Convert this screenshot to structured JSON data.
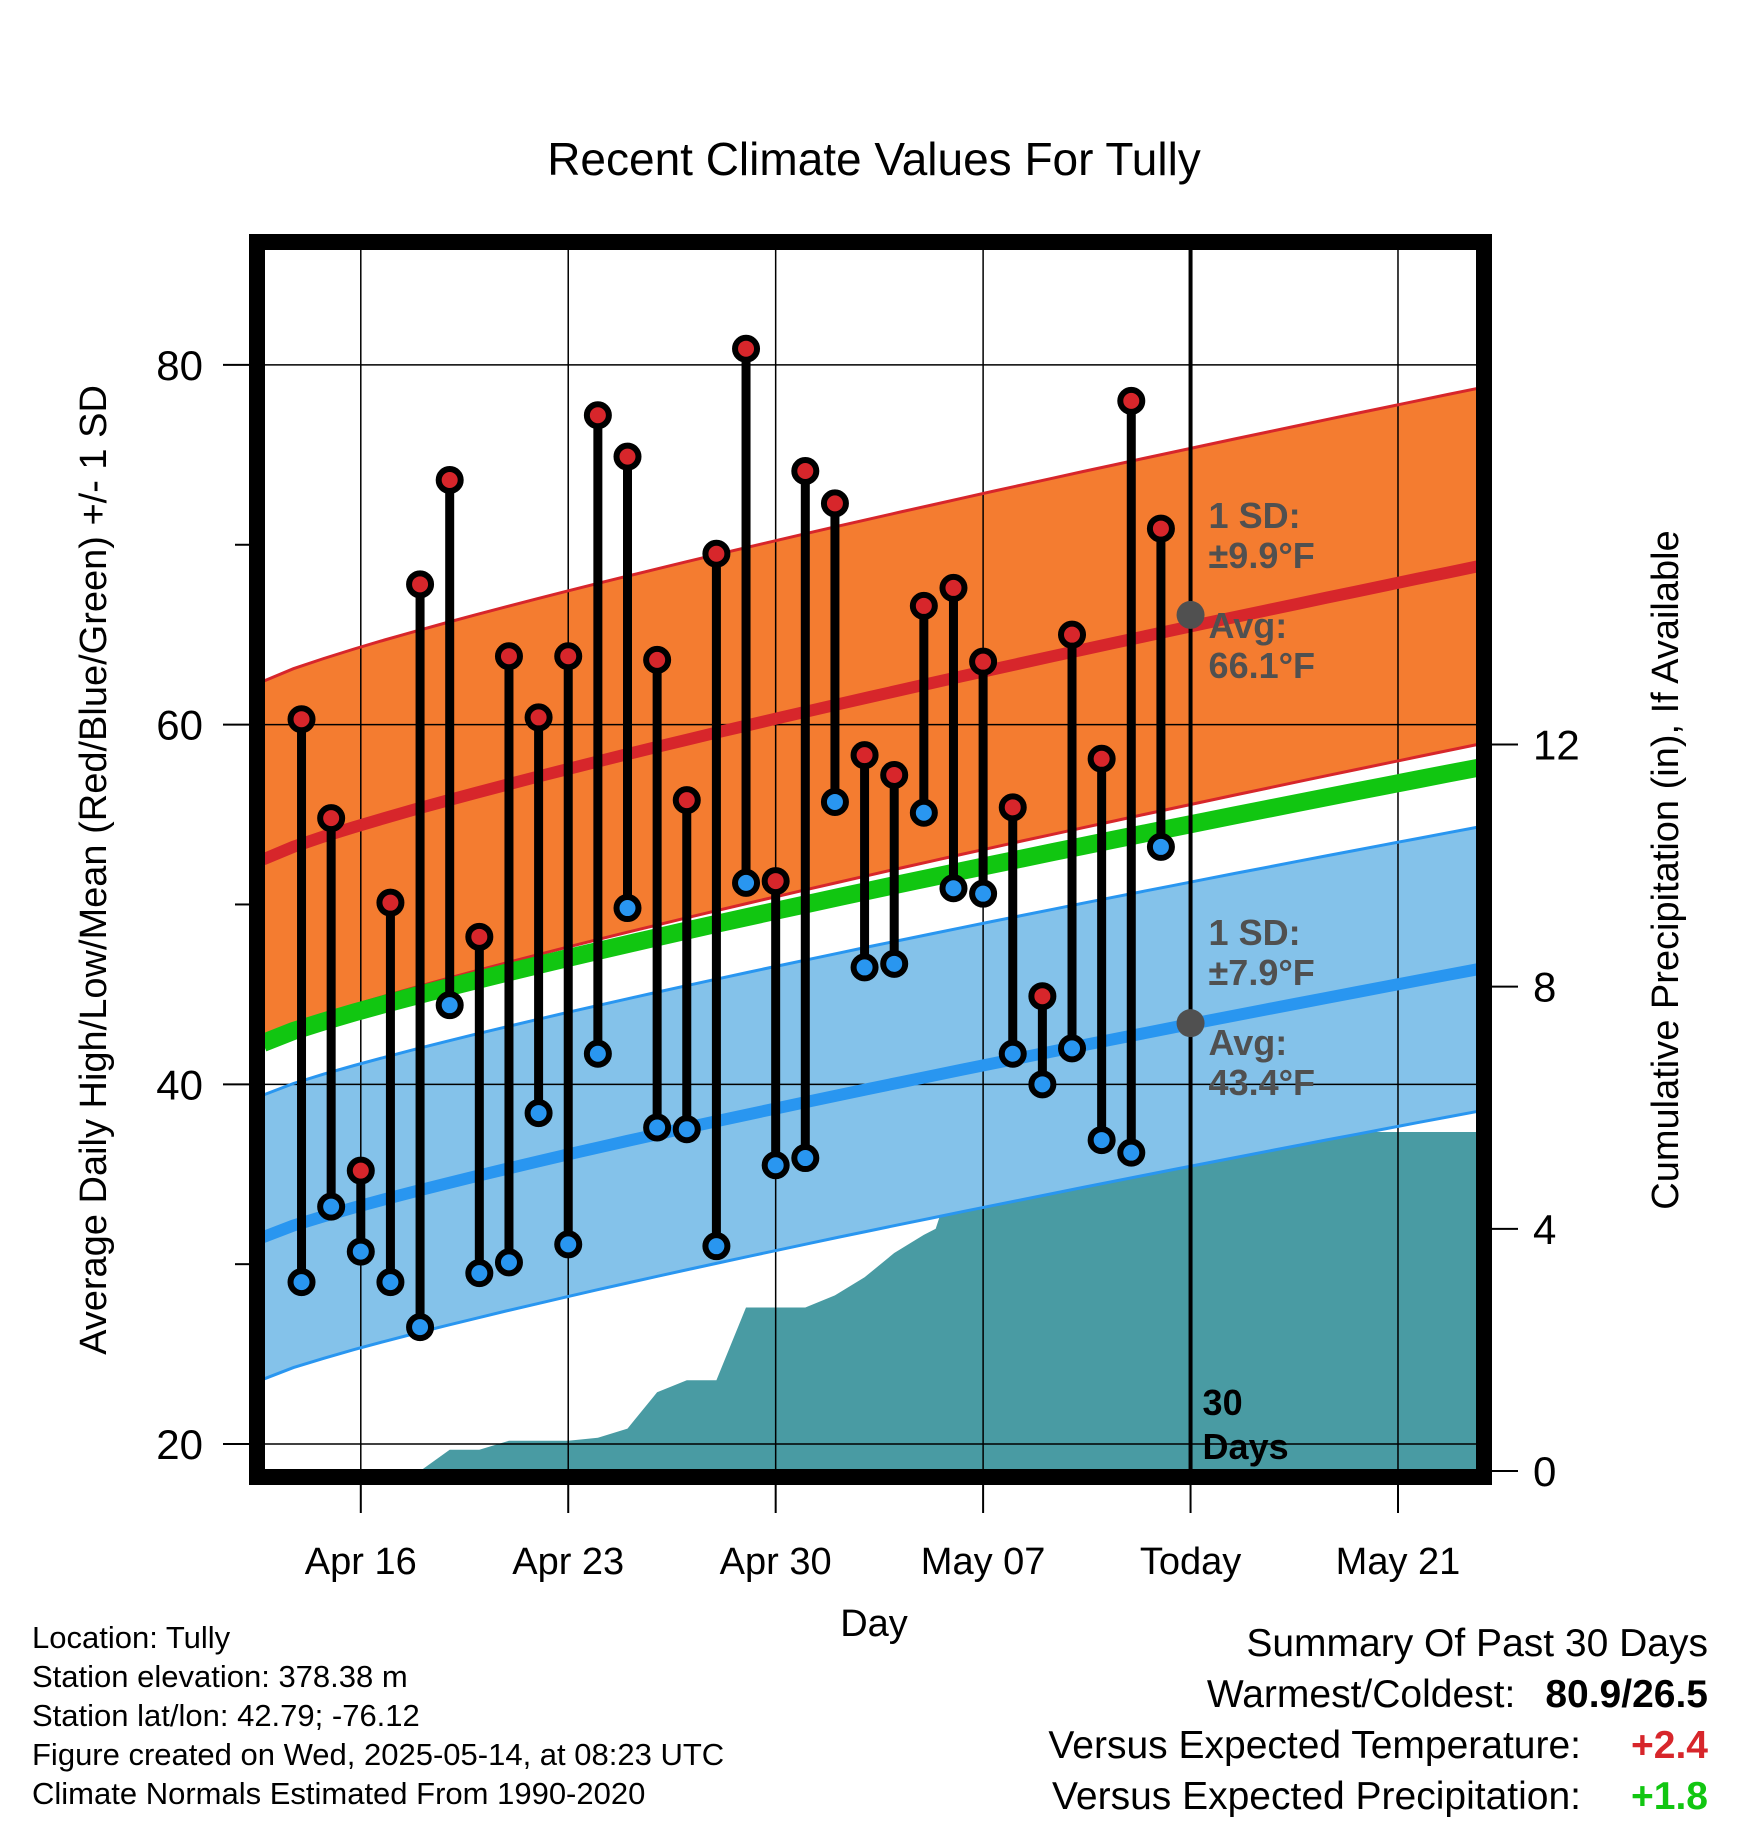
{
  "chart_data": {
    "type": "line",
    "title": "Recent Climate Values For Tully",
    "xlabel": "Day",
    "ylabel": "Average Daily High/Low/Mean (Red/Blue/Green) +/- 1 SD",
    "y2label": "Cumulative Precipitation (in), If Available",
    "ylim": [
      18.5,
      86.5
    ],
    "y2lim": [
      0,
      20.2
    ],
    "yticks": [
      "20",
      "40",
      "60",
      "80"
    ],
    "y2ticks": [
      "0",
      "4",
      "8",
      "12"
    ],
    "xtick_labels": [
      "Apr 16",
      "Apr 23",
      "Apr 30",
      "May 07",
      "Today",
      "May 21"
    ],
    "xtick_days": [
      16,
      23,
      30,
      37,
      44,
      51
    ],
    "xlim": [
      12.7,
      53.7
    ],
    "grid": true,
    "today_day": 44,
    "days": [
      14,
      15,
      16,
      17,
      18,
      19,
      20,
      21,
      22,
      23,
      24,
      25,
      26,
      27,
      28,
      29,
      30,
      31,
      32,
      33,
      34,
      35,
      36,
      37,
      38,
      39,
      40,
      41,
      42,
      43
    ],
    "series": [
      {
        "name": "High",
        "color": "#d7262b",
        "values": [
          60.3,
          54.8,
          35.2,
          50.1,
          67.8,
          73.6,
          48.2,
          63.8,
          60.4,
          63.8,
          77.2,
          74.9,
          63.6,
          55.8,
          69.5,
          80.9,
          51.3,
          74.1,
          72.3,
          58.3,
          57.2,
          66.6,
          67.6,
          63.5,
          55.4,
          44.9,
          65.0,
          58.1,
          78.0,
          70.9
        ]
      },
      {
        "name": "Low",
        "color": "#2996f0",
        "values": [
          29.0,
          33.2,
          30.7,
          29.0,
          26.5,
          44.4,
          29.5,
          30.1,
          38.4,
          31.1,
          41.7,
          49.8,
          37.6,
          37.5,
          31.0,
          51.2,
          35.5,
          35.9,
          55.7,
          46.5,
          46.7,
          55.1,
          50.9,
          50.6,
          41.7,
          40.0,
          42.0,
          36.9,
          36.2,
          53.2
        ]
      }
    ],
    "normals": {
      "high_avg": [
        52.5,
        68.8
      ],
      "high_sd": 9.9,
      "low_avg": [
        31.5,
        46.4
      ],
      "low_sd": 7.9,
      "mean_avg": [
        42.3,
        57.6
      ],
      "high_color": "#f47c30",
      "low_color": "#84c2ea",
      "mean_color": "#11c611"
    },
    "precip": {
      "color": "#499ba3",
      "x": [
        12.7,
        16,
        17,
        18,
        19,
        20,
        21,
        22,
        23,
        24,
        25,
        26,
        27,
        28,
        29,
        30,
        31,
        32,
        33,
        34,
        35,
        35.4,
        36,
        37,
        38,
        39,
        40,
        41,
        42,
        43,
        44,
        53.7
      ],
      "values": [
        0,
        0,
        0,
        0,
        0.35,
        0.35,
        0.5,
        0.5,
        0.5,
        0.55,
        0.7,
        1.3,
        1.5,
        1.5,
        2.7,
        2.7,
        2.7,
        2.9,
        3.2,
        3.6,
        3.9,
        4.0,
        4.9,
        5.2,
        5.2,
        5.6,
        5.6,
        5.6,
        5.6,
        5.6,
        5.6,
        5.6
      ]
    },
    "annotations": {
      "high_sd_label": [
        "1 SD:",
        "±9.9°F"
      ],
      "high_avg_label": [
        "Avg:",
        "66.1°F"
      ],
      "low_sd_label": [
        "1 SD:",
        "±7.9°F"
      ],
      "low_avg_label": [
        "Avg:",
        "43.4°F"
      ],
      "high_marker_value": 66.1,
      "low_marker_value": 43.4,
      "today_label": [
        "30",
        "Days"
      ],
      "marker_color": "#505050"
    }
  },
  "footer": {
    "location": "Location: Tully",
    "elevation": "Station elevation: 378.38 m",
    "latlon": "Station lat/lon: 42.79; -76.12",
    "created": "Figure created on Wed, 2025-05-14, at 08:23 UTC",
    "normals": "Climate Normals Estimated From 1990-2020"
  },
  "summary": {
    "heading": "Summary Of Past 30 Days",
    "warmest_label": "Warmest/Coldest:",
    "warmest_value": "80.9/26.5",
    "temp_label": "Versus Expected Temperature:",
    "temp_value": "+2.4",
    "temp_color": "#d7262b",
    "precip_label": "Versus Expected Precipitation:",
    "precip_value": "+1.8",
    "precip_color": "#11c611"
  }
}
